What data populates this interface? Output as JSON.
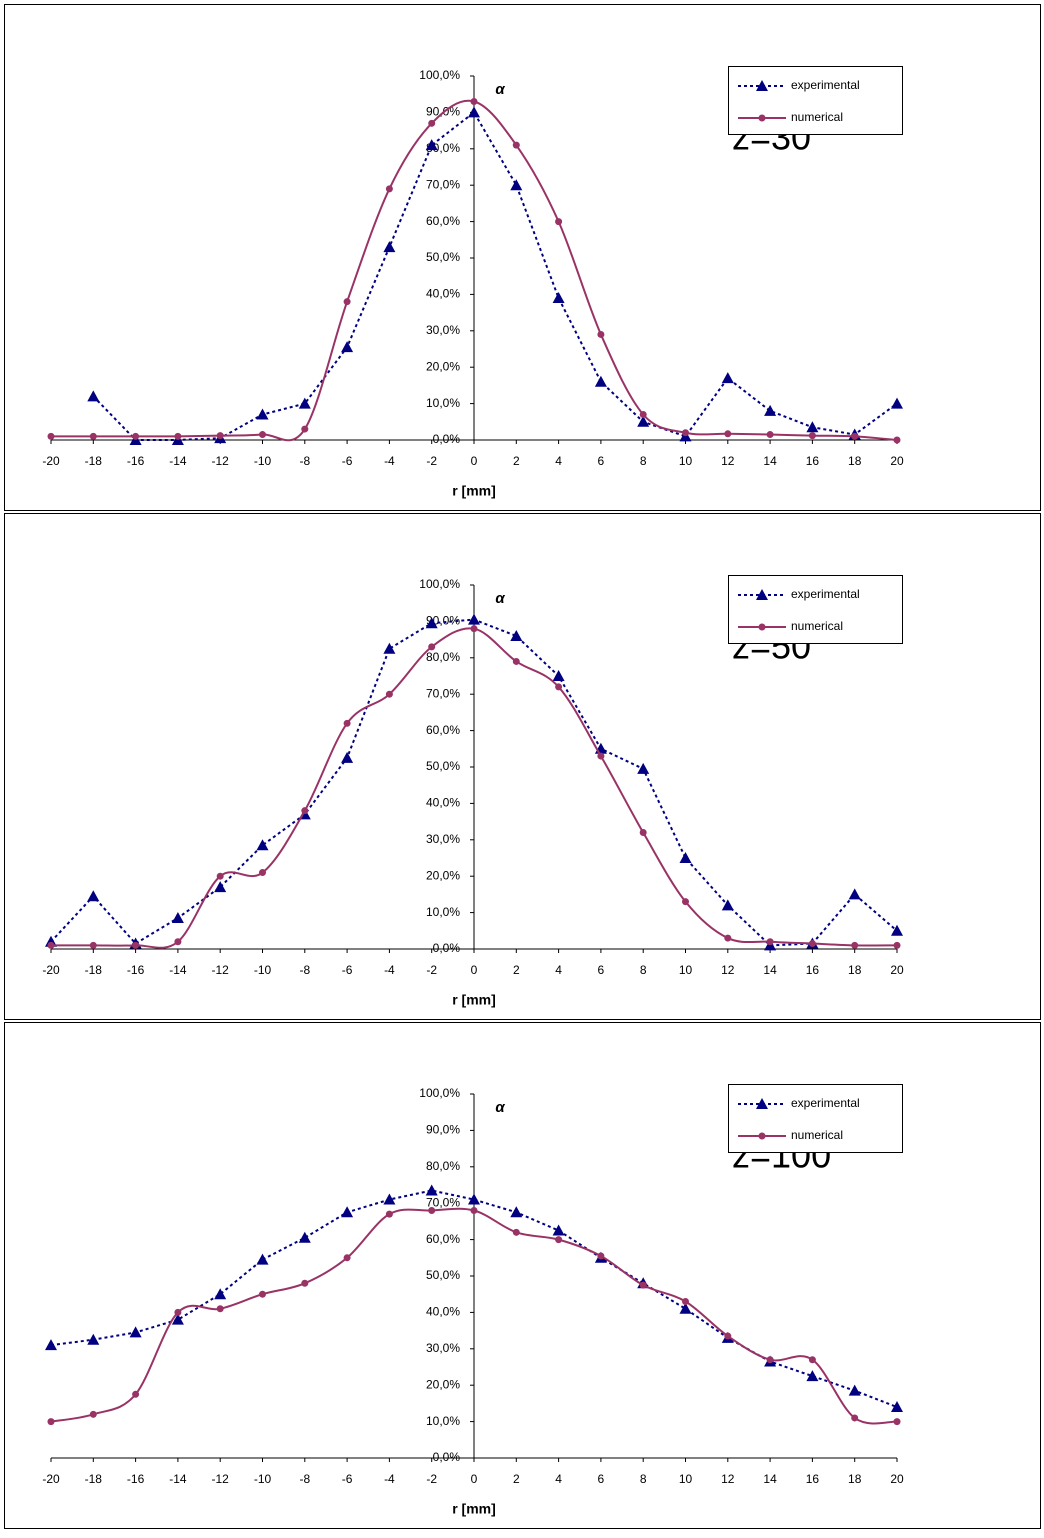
{
  "chart_data": [
    {
      "type": "line",
      "annotation": "z=30",
      "x_label": "r [mm]",
      "y_label": "α",
      "legend": "right",
      "x": [
        -20,
        -18,
        -16,
        -14,
        -12,
        -10,
        -8,
        -6,
        -4,
        -2,
        0,
        2,
        4,
        6,
        8,
        10,
        12,
        14,
        16,
        18,
        20
      ],
      "xlim": [
        -20,
        20
      ],
      "xticks": [
        -20,
        -18,
        -16,
        -14,
        -12,
        -10,
        -8,
        -6,
        -4,
        -2,
        0,
        2,
        4,
        6,
        8,
        10,
        12,
        14,
        16,
        18,
        20
      ],
      "ylim": [
        0,
        100
      ],
      "yticks": [
        {
          "value": 0,
          "label": "0,0%"
        },
        {
          "value": 10,
          "label": "10,0%"
        },
        {
          "value": 20,
          "label": "20,0%"
        },
        {
          "value": 30,
          "label": "30,0%"
        },
        {
          "value": 40,
          "label": "40,0%"
        },
        {
          "value": 50,
          "label": "50,0%"
        },
        {
          "value": 60,
          "label": "60,0%"
        },
        {
          "value": 70,
          "label": "70,0%"
        },
        {
          "value": 80,
          "label": "80,0%"
        },
        {
          "value": 90,
          "label": "90,0%"
        },
        {
          "value": 100,
          "label": "100,0%"
        }
      ],
      "series": [
        {
          "name": "experimental",
          "color": "#000080",
          "marker": "triangle",
          "dashed": true,
          "smooth": false,
          "values": [
            null,
            12,
            0,
            0,
            0.5,
            7,
            10,
            25.5,
            53,
            81,
            90,
            70,
            39,
            16,
            5,
            1,
            17,
            8,
            3.5,
            1.5,
            10
          ]
        },
        {
          "name": "numerical",
          "color": "#993366",
          "marker": "circle",
          "dashed": false,
          "smooth": true,
          "values": [
            1,
            1,
            1,
            1,
            1.2,
            1.5,
            3,
            38,
            69,
            87,
            93,
            81,
            60,
            29,
            7,
            2,
            1.7,
            1.5,
            1.2,
            1,
            0
          ]
        }
      ]
    },
    {
      "type": "line",
      "annotation": "z=50",
      "x_label": "r [mm]",
      "y_label": "α",
      "legend": "right",
      "x": [
        -20,
        -18,
        -16,
        -14,
        -12,
        -10,
        -8,
        -6,
        -4,
        -2,
        0,
        2,
        4,
        6,
        8,
        10,
        12,
        14,
        16,
        18,
        20
      ],
      "xlim": [
        -20,
        20
      ],
      "xticks": [
        -20,
        -18,
        -16,
        -14,
        -12,
        -10,
        -8,
        -6,
        -4,
        -2,
        0,
        2,
        4,
        6,
        8,
        10,
        12,
        14,
        16,
        18,
        20
      ],
      "ylim": [
        0,
        100
      ],
      "yticks": [
        {
          "value": 0,
          "label": "0,0%"
        },
        {
          "value": 10,
          "label": "10,0%"
        },
        {
          "value": 20,
          "label": "20,0%"
        },
        {
          "value": 30,
          "label": "30,0%"
        },
        {
          "value": 40,
          "label": "40,0%"
        },
        {
          "value": 50,
          "label": "50,0%"
        },
        {
          "value": 60,
          "label": "60,0%"
        },
        {
          "value": 70,
          "label": "70,0%"
        },
        {
          "value": 80,
          "label": "80,0%"
        },
        {
          "value": 90,
          "label": "90,0%"
        },
        {
          "value": 100,
          "label": "100,0%"
        }
      ],
      "series": [
        {
          "name": "experimental",
          "color": "#000080",
          "marker": "triangle",
          "dashed": true,
          "smooth": false,
          "values": [
            2,
            14.5,
            1.5,
            8.5,
            17,
            28.5,
            37,
            52.5,
            82.5,
            89.5,
            90.5,
            86,
            75,
            55,
            49.5,
            25,
            12,
            1,
            1.5,
            15,
            5
          ]
        },
        {
          "name": "numerical",
          "color": "#993366",
          "marker": "circle",
          "dashed": false,
          "smooth": true,
          "values": [
            1,
            1,
            1,
            2,
            20,
            21,
            38,
            62,
            70,
            83,
            88,
            79,
            72,
            53,
            32,
            13,
            3,
            2,
            1.5,
            1,
            1
          ]
        }
      ]
    },
    {
      "type": "line",
      "annotation": "z=100",
      "x_label": "r [mm]",
      "y_label": "α",
      "legend": "right",
      "x": [
        -20,
        -18,
        -16,
        -14,
        -12,
        -10,
        -8,
        -6,
        -4,
        -2,
        0,
        2,
        4,
        6,
        8,
        10,
        12,
        14,
        16,
        18,
        20
      ],
      "xlim": [
        -20,
        20
      ],
      "xticks": [
        -20,
        -18,
        -16,
        -14,
        -12,
        -10,
        -8,
        -6,
        -4,
        -2,
        0,
        2,
        4,
        6,
        8,
        10,
        12,
        14,
        16,
        18,
        20
      ],
      "ylim": [
        0,
        100
      ],
      "yticks": [
        {
          "value": 0,
          "label": "0,0%"
        },
        {
          "value": 10,
          "label": "10,0%"
        },
        {
          "value": 20,
          "label": "20,0%"
        },
        {
          "value": 30,
          "label": "30,0%"
        },
        {
          "value": 40,
          "label": "40,0%"
        },
        {
          "value": 50,
          "label": "50,0%"
        },
        {
          "value": 60,
          "label": "60,0%"
        },
        {
          "value": 70,
          "label": "70,0%"
        },
        {
          "value": 80,
          "label": "80,0%"
        },
        {
          "value": 90,
          "label": "90,0%"
        },
        {
          "value": 100,
          "label": "100,0%"
        }
      ],
      "series": [
        {
          "name": "experimental",
          "color": "#000080",
          "marker": "triangle",
          "dashed": true,
          "smooth": false,
          "values": [
            31,
            32.5,
            34.5,
            38,
            45,
            54.5,
            60.5,
            67.5,
            71,
            73.5,
            71,
            67.5,
            62.5,
            55,
            48,
            41,
            33,
            26.5,
            22.5,
            18.5,
            14
          ]
        },
        {
          "name": "numerical",
          "color": "#993366",
          "marker": "circle",
          "dashed": false,
          "smooth": true,
          "values": [
            10,
            12,
            17.5,
            40,
            41,
            45,
            48,
            55,
            67,
            68,
            68,
            62,
            60,
            55.5,
            47.5,
            43,
            33.5,
            27,
            27,
            11,
            10
          ]
        }
      ]
    }
  ]
}
